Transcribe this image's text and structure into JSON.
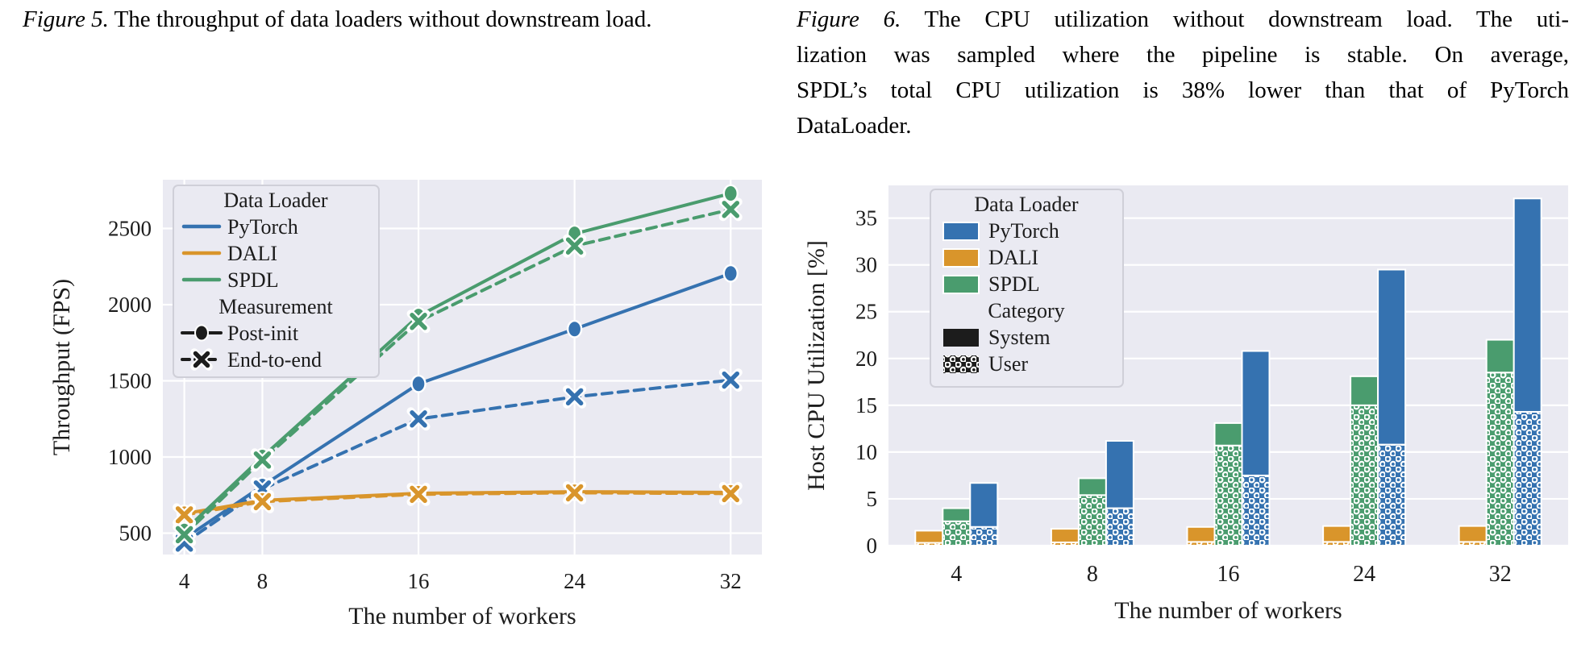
{
  "colors": {
    "blue": "#3572b0",
    "orange": "#d9952b",
    "green": "#4a9c6e",
    "plot_bg": "#eaeaf2",
    "grid": "#ffffff",
    "text": "#1c1c1c",
    "black": "#1c1c1c",
    "legend_border": "#cfcfd8"
  },
  "figure5": {
    "caption": {
      "prefix": "Figure 5.",
      "text": "The throughput of data loaders without downstream load."
    }
  },
  "figure6": {
    "caption": {
      "prefix": "Figure 6.",
      "lines": [
        "The CPU utilization without downstream load. The uti-",
        "lization was sampled where the pipeline is stable.  On average,",
        "SPDL’s total CPU utilization is 38% lower than that of PyTorch",
        "DataLoader."
      ]
    }
  },
  "chart_data": [
    {
      "id": "figure5",
      "type": "line",
      "title": "",
      "xlabel": "The number of workers",
      "ylabel": "Throughput (FPS)",
      "x": [
        4,
        8,
        16,
        24,
        32
      ],
      "xticks": [
        "4",
        "8",
        "16",
        "24",
        "32"
      ],
      "yticks": [
        500,
        1000,
        1500,
        2000,
        2500
      ],
      "xlim": [
        2.9,
        33.6
      ],
      "ylim": [
        360,
        2820
      ],
      "grid": true,
      "legend": {
        "position": "upper left",
        "title1": "Data Loader",
        "loaders": [
          {
            "label": "PyTorch",
            "color": "#3572b0"
          },
          {
            "label": "DALI",
            "color": "#d9952b"
          },
          {
            "label": "SPDL",
            "color": "#4a9c6e"
          }
        ],
        "title2": "Measurement",
        "measurements": [
          {
            "label": "Post-init",
            "marker": "circle",
            "style": "solid"
          },
          {
            "label": "End-to-end",
            "marker": "x",
            "style": "dashed"
          }
        ]
      },
      "series": [
        {
          "name": "PyTorch",
          "measurement": "Post-init",
          "color": "#3572b0",
          "style": "solid",
          "marker": "circle",
          "values": [
            465,
            810,
            1480,
            1840,
            2205
          ]
        },
        {
          "name": "PyTorch",
          "measurement": "End-to-end",
          "color": "#3572b0",
          "style": "dashed",
          "marker": "x",
          "values": [
            435,
            790,
            1250,
            1395,
            1505
          ]
        },
        {
          "name": "DALI",
          "measurement": "Post-init",
          "color": "#d9952b",
          "style": "solid",
          "marker": "circle",
          "values": [
            628,
            715,
            762,
            772,
            768
          ]
        },
        {
          "name": "DALI",
          "measurement": "End-to-end",
          "color": "#d9952b",
          "style": "dashed",
          "marker": "x",
          "values": [
            620,
            707,
            755,
            765,
            760
          ]
        },
        {
          "name": "SPDL",
          "measurement": "Post-init",
          "color": "#4a9c6e",
          "style": "solid",
          "marker": "circle",
          "values": [
            515,
            1000,
            1925,
            2465,
            2730
          ]
        },
        {
          "name": "SPDL",
          "measurement": "End-to-end",
          "color": "#4a9c6e",
          "style": "dashed",
          "marker": "x",
          "values": [
            490,
            980,
            1890,
            2385,
            2625
          ]
        }
      ]
    },
    {
      "id": "figure6",
      "type": "bar",
      "title": "",
      "xlabel": "The number of workers",
      "ylabel": "Host CPU Utilization [%]",
      "categories": [
        "4",
        "8",
        "16",
        "24",
        "32"
      ],
      "yticks": [
        0,
        5,
        10,
        15,
        20,
        25,
        30,
        35
      ],
      "ylim": [
        0,
        38.5
      ],
      "grid": true,
      "stacking": "User bottom (dotted), System top (solid)",
      "legend": {
        "position": "upper left",
        "title1": "Data Loader",
        "loaders": [
          {
            "label": "PyTorch",
            "color": "#3572b0"
          },
          {
            "label": "DALI",
            "color": "#d9952b"
          },
          {
            "label": "SPDL",
            "color": "#4a9c6e"
          }
        ],
        "title2": "Category",
        "categories_legend": [
          {
            "label": "System",
            "pattern": "solid"
          },
          {
            "label": "User",
            "pattern": "dots"
          }
        ]
      },
      "series": [
        {
          "name": "DALI",
          "color": "#d9952b",
          "user": [
            0.3,
            0.35,
            0.4,
            0.4,
            0.4
          ],
          "system": [
            1.3,
            1.45,
            1.6,
            1.7,
            1.7
          ]
        },
        {
          "name": "SPDL",
          "color": "#4a9c6e",
          "user": [
            2.6,
            5.4,
            10.7,
            15.0,
            18.5
          ],
          "system": [
            1.4,
            1.8,
            2.4,
            3.1,
            3.5
          ]
        },
        {
          "name": "PyTorch",
          "color": "#3572b0",
          "user": [
            2.0,
            4.0,
            7.5,
            10.8,
            14.3
          ],
          "system": [
            4.7,
            7.2,
            13.3,
            18.7,
            22.8
          ]
        }
      ]
    }
  ]
}
